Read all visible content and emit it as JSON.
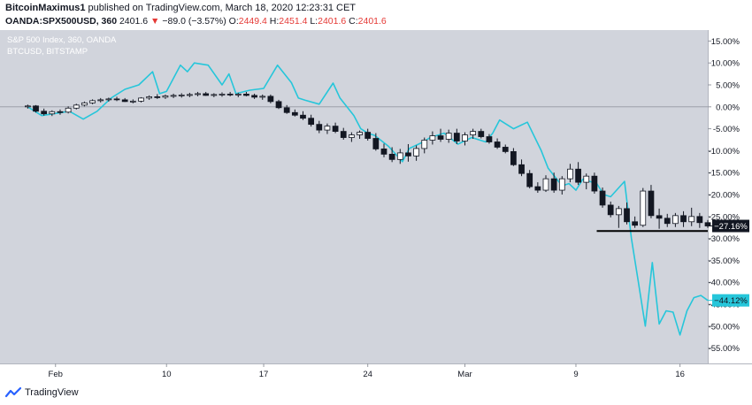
{
  "publisher": {
    "author": "BitcoinMaximus1",
    "text": "published on TradingView.com, March 18, 2020 12:23:31 CET"
  },
  "ohlc": {
    "symbol": "OANDA:SPX500USD, 360",
    "last": "2401.6",
    "arrow": "▼",
    "change": "−89.0 (−3.57%)",
    "o_label": "O:",
    "o_value": "2449.4",
    "h_label": "H:",
    "h_value": "2451.4",
    "l_label": "L:",
    "l_value": "2401.6",
    "c_label": "C:",
    "c_value": "2401.6"
  },
  "footer": {
    "brand": "TradingView"
  },
  "colors": {
    "background": "#d1d4dc",
    "btc_line": "#26c6da",
    "candle_up": "#ffffff",
    "candle_down": "#131722",
    "badge_spx": "#131722",
    "badge_btc": "#26c6da"
  },
  "chart_data": {
    "type": "line",
    "title": "S&P 500 Index, 360, OANDA",
    "subtitle": "BTCUSD, BITSTAMP",
    "y_unit": "%",
    "ylim": [
      -58.5,
      17.5
    ],
    "y_ticks": [
      15,
      10,
      5,
      0,
      -5,
      -10,
      -15,
      -20,
      -25,
      -30,
      -35,
      -40,
      -45,
      -50,
      -55
    ],
    "y_tick_labels": [
      "15.00%",
      "10.00%",
      "5.00%",
      "0.00%",
      "-5.00%",
      "-10.00%",
      "-15.00%",
      "-20.00%",
      "-25.00%",
      "-30.00%",
      "-35.00%",
      "-40.00%",
      "-45.00%",
      "-50.00%",
      "-55.00%"
    ],
    "x_range": [
      -4,
      98
    ],
    "x_ticks": [
      {
        "x": 4,
        "label": "Feb"
      },
      {
        "x": 20,
        "label": "10"
      },
      {
        "x": 34,
        "label": "17"
      },
      {
        "x": 49,
        "label": "24"
      },
      {
        "x": 63,
        "label": "Mar"
      },
      {
        "x": 79,
        "label": "9"
      },
      {
        "x": 94,
        "label": "16"
      }
    ],
    "zero_line": true,
    "grid": false,
    "series": [
      {
        "name": "BTCUSD",
        "kind": "line",
        "x": [
          0,
          2,
          4,
          6,
          8,
          10,
          12,
          14,
          16,
          18,
          19,
          20,
          22,
          23,
          24,
          26,
          28,
          29,
          30,
          32,
          34,
          36,
          38,
          39,
          40,
          42,
          44,
          45,
          47,
          48,
          49,
          50,
          52,
          54,
          55,
          57,
          58,
          60,
          62,
          64,
          66,
          67,
          68,
          70,
          72,
          74,
          75,
          77,
          78,
          79,
          80,
          82,
          83,
          84,
          86,
          87,
          88,
          89,
          90,
          91,
          92,
          93,
          94,
          95,
          96,
          97,
          98
        ],
        "values": [
          0,
          -2,
          -1.5,
          -1,
          -2.8,
          -1,
          2,
          4,
          5,
          8,
          3,
          3.5,
          9.5,
          8,
          10,
          9.5,
          5,
          7.5,
          3,
          3.8,
          4.2,
          9.5,
          5.5,
          2,
          1.5,
          0.6,
          5.4,
          2,
          -2,
          -5,
          -6,
          -6.5,
          -9,
          -12.5,
          -9.5,
          -8,
          -7,
          -6,
          -8.5,
          -7,
          -8,
          -6,
          -3,
          -5,
          -3.5,
          -10,
          -14,
          -18,
          -17.5,
          -19,
          -16.5,
          -17.5,
          -20,
          -20.5,
          -17,
          -30,
          -40,
          -50,
          -35.5,
          -49.5,
          -46.5,
          -46.8,
          -52,
          -46.5,
          -43.5,
          -43,
          -44.12
        ]
      },
      {
        "name": "S&P 500 Index",
        "kind": "candlestick",
        "ohlc": [
          [
            0.0,
            0.5,
            -0.4,
            0.2
          ],
          [
            0.2,
            0.4,
            -1.3,
            -1.0
          ],
          [
            -1.0,
            -0.4,
            -2.0,
            -1.6
          ],
          [
            -1.6,
            -0.8,
            -2.1,
            -1.1
          ],
          [
            -1.1,
            -0.6,
            -1.8,
            -1.2
          ],
          [
            -1.2,
            0.1,
            -1.5,
            -0.3
          ],
          [
            -0.3,
            0.7,
            -0.6,
            0.4
          ],
          [
            0.4,
            1.2,
            0.1,
            0.9
          ],
          [
            0.9,
            1.7,
            0.6,
            1.4
          ],
          [
            1.4,
            2.0,
            1.0,
            1.6
          ],
          [
            1.6,
            2.1,
            1.2,
            1.8
          ],
          [
            1.8,
            2.3,
            1.3,
            1.6
          ],
          [
            1.6,
            2.0,
            1.1,
            1.2
          ],
          [
            1.2,
            1.7,
            0.8,
            1.3
          ],
          [
            1.3,
            2.2,
            1.0,
            2.0
          ],
          [
            2.0,
            2.6,
            1.6,
            2.3
          ],
          [
            2.3,
            2.9,
            1.8,
            2.2
          ],
          [
            2.2,
            2.8,
            1.8,
            2.5
          ],
          [
            2.5,
            3.0,
            2.0,
            2.6
          ],
          [
            2.6,
            3.1,
            2.1,
            2.7
          ],
          [
            2.7,
            3.2,
            2.2,
            2.8
          ],
          [
            2.8,
            3.4,
            2.4,
            3.0
          ],
          [
            3.0,
            3.4,
            2.5,
            2.6
          ],
          [
            2.6,
            3.1,
            2.2,
            2.8
          ],
          [
            2.8,
            3.3,
            2.3,
            2.9
          ],
          [
            2.9,
            3.4,
            2.4,
            2.7
          ],
          [
            2.7,
            3.2,
            2.2,
            2.9
          ],
          [
            2.9,
            3.4,
            2.4,
            2.6
          ],
          [
            2.6,
            3.0,
            1.8,
            2.2
          ],
          [
            2.2,
            2.8,
            1.6,
            2.4
          ],
          [
            2.4,
            2.8,
            0.8,
            1.2
          ],
          [
            1.2,
            1.6,
            -0.5,
            -0.2
          ],
          [
            -0.2,
            0.4,
            -1.6,
            -1.3
          ],
          [
            -1.3,
            -0.6,
            -2.2,
            -1.9
          ],
          [
            -1.9,
            -1.0,
            -3.0,
            -2.6
          ],
          [
            -2.6,
            -1.8,
            -4.5,
            -4.0
          ],
          [
            -4.0,
            -3.2,
            -6.0,
            -5.3
          ],
          [
            -5.3,
            -3.8,
            -6.2,
            -4.4
          ],
          [
            -4.4,
            -3.6,
            -6.0,
            -5.6
          ],
          [
            -5.6,
            -4.8,
            -7.5,
            -7.0
          ],
          [
            -7.0,
            -5.8,
            -8.0,
            -6.4
          ],
          [
            -6.4,
            -5.4,
            -7.3,
            -5.8
          ],
          [
            -5.8,
            -5.0,
            -7.7,
            -7.2
          ],
          [
            -7.2,
            -6.0,
            -10.0,
            -9.6
          ],
          [
            -9.6,
            -8.4,
            -11.5,
            -10.8
          ],
          [
            -10.8,
            -9.2,
            -12.6,
            -12.0
          ],
          [
            -12.0,
            -9.6,
            -13.0,
            -10.5
          ],
          [
            -10.5,
            -8.5,
            -12.5,
            -11.2
          ],
          [
            -11.2,
            -8.8,
            -12.3,
            -9.5
          ],
          [
            -9.5,
            -7.0,
            -10.6,
            -7.6
          ],
          [
            -7.6,
            -5.6,
            -8.6,
            -6.6
          ],
          [
            -6.6,
            -5.0,
            -8.0,
            -7.4
          ],
          [
            -7.4,
            -5.2,
            -8.2,
            -6.0
          ],
          [
            -6.0,
            -5.0,
            -8.5,
            -7.8
          ],
          [
            -7.8,
            -5.8,
            -8.8,
            -6.4
          ],
          [
            -6.4,
            -5.0,
            -7.3,
            -5.6
          ],
          [
            -5.6,
            -5.0,
            -7.2,
            -6.8
          ],
          [
            -6.8,
            -6.2,
            -8.4,
            -8.0
          ],
          [
            -8.0,
            -7.2,
            -9.6,
            -9.2
          ],
          [
            -9.2,
            -8.6,
            -10.6,
            -10.2
          ],
          [
            -10.2,
            -9.4,
            -13.5,
            -13.2
          ],
          [
            -13.2,
            -12.0,
            -15.8,
            -15.2
          ],
          [
            -15.2,
            -14.4,
            -18.6,
            -18.2
          ],
          [
            -18.2,
            -17.2,
            -19.6,
            -19.0
          ],
          [
            -19.0,
            -15.6,
            -19.4,
            -16.4
          ],
          [
            -16.4,
            -15.0,
            -19.6,
            -19.0
          ],
          [
            -19.0,
            -15.8,
            -20.0,
            -16.4
          ],
          [
            -16.4,
            -13.0,
            -17.2,
            -14.2
          ],
          [
            -14.2,
            -12.6,
            -17.8,
            -17.2
          ],
          [
            -17.2,
            -15.2,
            -18.8,
            -15.8
          ],
          [
            -15.8,
            -15.0,
            -19.8,
            -19.2
          ],
          [
            -19.2,
            -18.4,
            -23.0,
            -22.4
          ],
          [
            -22.4,
            -21.6,
            -25.2,
            -24.6
          ],
          [
            -24.6,
            -22.6,
            -27.6,
            -23.2
          ],
          [
            -23.2,
            -21.8,
            -26.8,
            -26.2
          ],
          [
            -26.2,
            -25.0,
            -27.6,
            -27.0
          ],
          [
            -27.0,
            -18.5,
            -27.4,
            -19.2
          ],
          [
            -19.2,
            -17.8,
            -25.4,
            -24.8
          ],
          [
            -24.8,
            -23.2,
            -27.8,
            -25.4
          ],
          [
            -25.4,
            -24.4,
            -27.4,
            -26.6
          ],
          [
            -26.6,
            -24.2,
            -27.4,
            -24.8
          ],
          [
            -24.8,
            -23.8,
            -27.4,
            -26.2
          ],
          [
            -26.2,
            -23.0,
            -27.2,
            -25.0
          ],
          [
            -25.0,
            -24.2,
            -27.6,
            -26.4
          ],
          [
            -26.4,
            -25.8,
            -27.6,
            -27.16
          ]
        ]
      }
    ],
    "support_line": {
      "y": -28.3,
      "x": [
        82,
        98
      ]
    },
    "last_values": [
      {
        "series": "S&P 500 Index",
        "value": -27.16,
        "label": "−27.16%"
      },
      {
        "series": "BTCUSD",
        "value": -44.12,
        "label": "−44.12%"
      }
    ]
  }
}
